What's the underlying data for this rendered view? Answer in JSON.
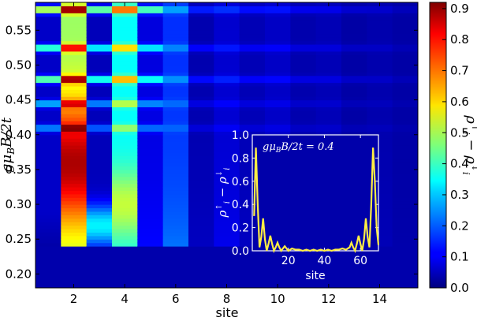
{
  "chart_data": [
    {
      "type": "heatmap",
      "title": "",
      "xlabel": "site",
      "ylabel": "gμ_B B/2t",
      "xlim": [
        0.5,
        15.5
      ],
      "ylim": [
        0.18,
        0.59
      ],
      "x_ticks": [
        2,
        4,
        6,
        8,
        10,
        12,
        14
      ],
      "y_ticks": [
        0.2,
        0.25,
        0.3,
        0.35,
        0.4,
        0.45,
        0.5,
        0.55
      ],
      "y_tick_labels": [
        "0.20",
        "0.25",
        "0.30",
        "0.35",
        "0.40",
        "0.45",
        "0.50",
        "0.55"
      ],
      "sites": [
        1,
        2,
        3,
        4,
        5,
        6,
        7,
        8,
        9,
        10,
        11,
        12,
        13,
        14,
        15
      ],
      "y_min": 0.18,
      "y_max": 0.59,
      "field_threshold": 0.238,
      "site_profile_base": [
        0.1,
        0.88,
        0.15,
        0.58,
        0.12,
        0.22,
        0.06,
        0.1,
        0.04,
        0.06,
        0.03,
        0.04,
        0.02,
        0.03,
        0.02
      ],
      "resonance_lines": [
        {
          "y": 0.58,
          "strength": 0.55
        },
        {
          "y": 0.525,
          "strength": 0.4
        },
        {
          "y": 0.48,
          "strength": 0.45
        },
        {
          "y": 0.445,
          "strength": 0.25
        },
        {
          "y": 0.41,
          "strength": 0.2
        }
      ],
      "colorbar": {
        "label": "ρ_i^↑ − ρ_i^↓",
        "min": 0.0,
        "max": 0.92,
        "ticks": [
          0.0,
          0.1,
          0.2,
          0.3,
          0.4,
          0.5,
          0.6,
          0.7,
          0.8,
          0.9
        ],
        "tick_labels": [
          "0.0",
          "0.1",
          "0.2",
          "0.3",
          "0.4",
          "0.5",
          "0.6",
          "0.7",
          "0.8",
          "0.9"
        ],
        "colormap": "jet"
      }
    },
    {
      "type": "line",
      "title": "",
      "annotation": "gμ_B B/2t = 0.4",
      "xlabel": "site",
      "ylabel": "ρ_i^↑ − ρ_i^↓",
      "xlim": [
        0,
        70
      ],
      "ylim": [
        0.0,
        1.0
      ],
      "x_ticks": [
        20,
        40,
        60
      ],
      "y_ticks": [
        0.0,
        0.2,
        0.4,
        0.6,
        0.8,
        1.0
      ],
      "y_tick_labels": [
        "0.0",
        "0.2",
        "0.4",
        "0.6",
        "0.8",
        "1.0"
      ],
      "line_color": "#ffee44",
      "background": "#0000aa",
      "series": [
        {
          "x": [
            1,
            2,
            3,
            4,
            5,
            6,
            7,
            8,
            9,
            10,
            11,
            12,
            13,
            14,
            15,
            16,
            17,
            18,
            19,
            20,
            22,
            24,
            26,
            28,
            30,
            32,
            34,
            36,
            38,
            40,
            42,
            44,
            46,
            48,
            50,
            52,
            54,
            55,
            56,
            57,
            58,
            59,
            60,
            61,
            62,
            63,
            64,
            65,
            66,
            67,
            68,
            69,
            70
          ],
          "y": [
            0.3,
            0.89,
            0.4,
            0.03,
            0.12,
            0.28,
            0.1,
            0.0,
            0.06,
            0.13,
            0.06,
            0.0,
            0.03,
            0.07,
            0.03,
            0.0,
            0.02,
            0.04,
            0.02,
            0.0,
            0.02,
            0.01,
            0.01,
            0.0,
            0.01,
            0.0,
            0.01,
            0.0,
            0.01,
            0.0,
            0.01,
            0.0,
            0.01,
            0.01,
            0.02,
            0.01,
            0.03,
            0.07,
            0.03,
            0.0,
            0.06,
            0.13,
            0.06,
            0.0,
            0.1,
            0.28,
            0.12,
            0.03,
            0.4,
            0.89,
            0.6,
            0.2,
            0.05
          ]
        }
      ]
    }
  ]
}
